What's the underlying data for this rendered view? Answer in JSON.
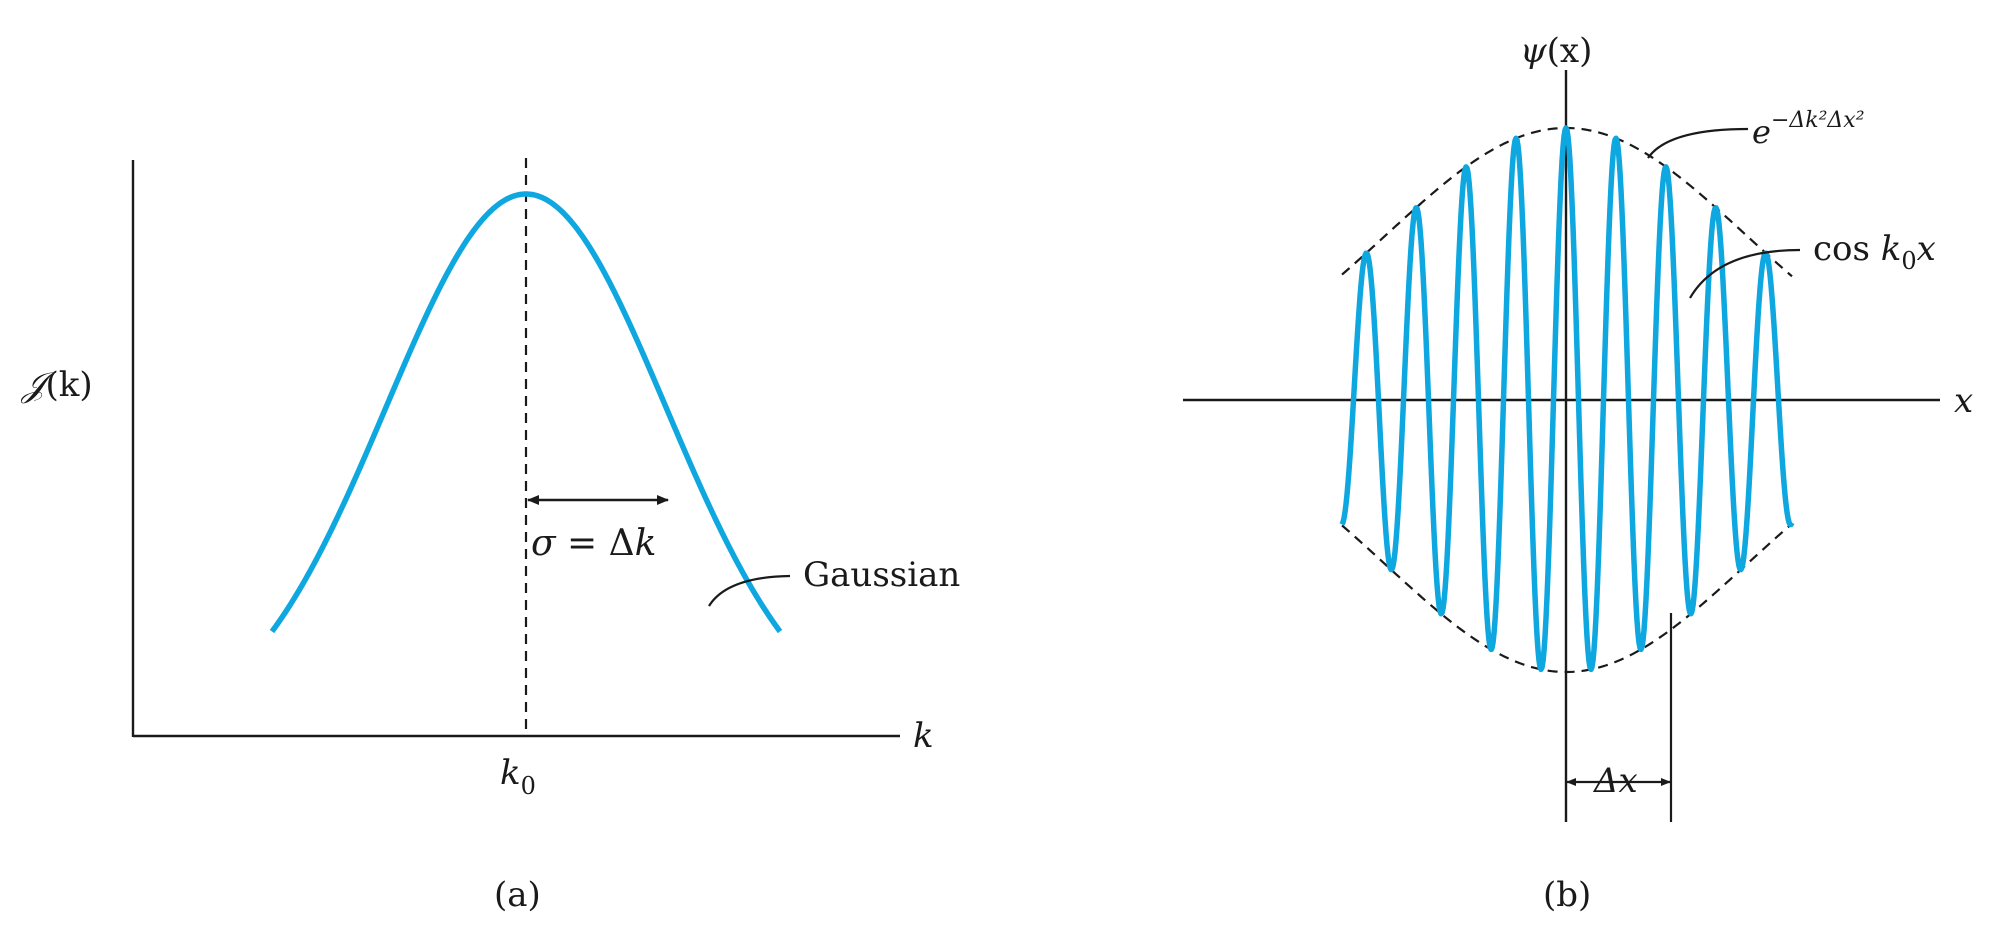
{
  "panel_a": {
    "y_label_script": "𝒥",
    "y_label_arg": "(k)",
    "x_label": "k",
    "center_label_base": "k",
    "center_label_sub": "0",
    "width_label_sigma": "σ",
    "width_label_eq": " = Δ",
    "width_label_k": "k",
    "curve_label": "Gaussian",
    "caption": "(a)"
  },
  "panel_b": {
    "y_label_psi": "ψ",
    "y_label_arg": "(x)",
    "x_label": "x",
    "envelope_label_base": "e",
    "envelope_label_exp": "−Δk²Δx²",
    "wave_label_cos": "cos ",
    "wave_label_k": "k",
    "wave_label_sub": "0",
    "wave_label_x": "x",
    "width_label": "Δx",
    "caption": "(b)"
  },
  "colors": {
    "curve": "#0ea7e0",
    "ink": "#1a1a1a"
  }
}
